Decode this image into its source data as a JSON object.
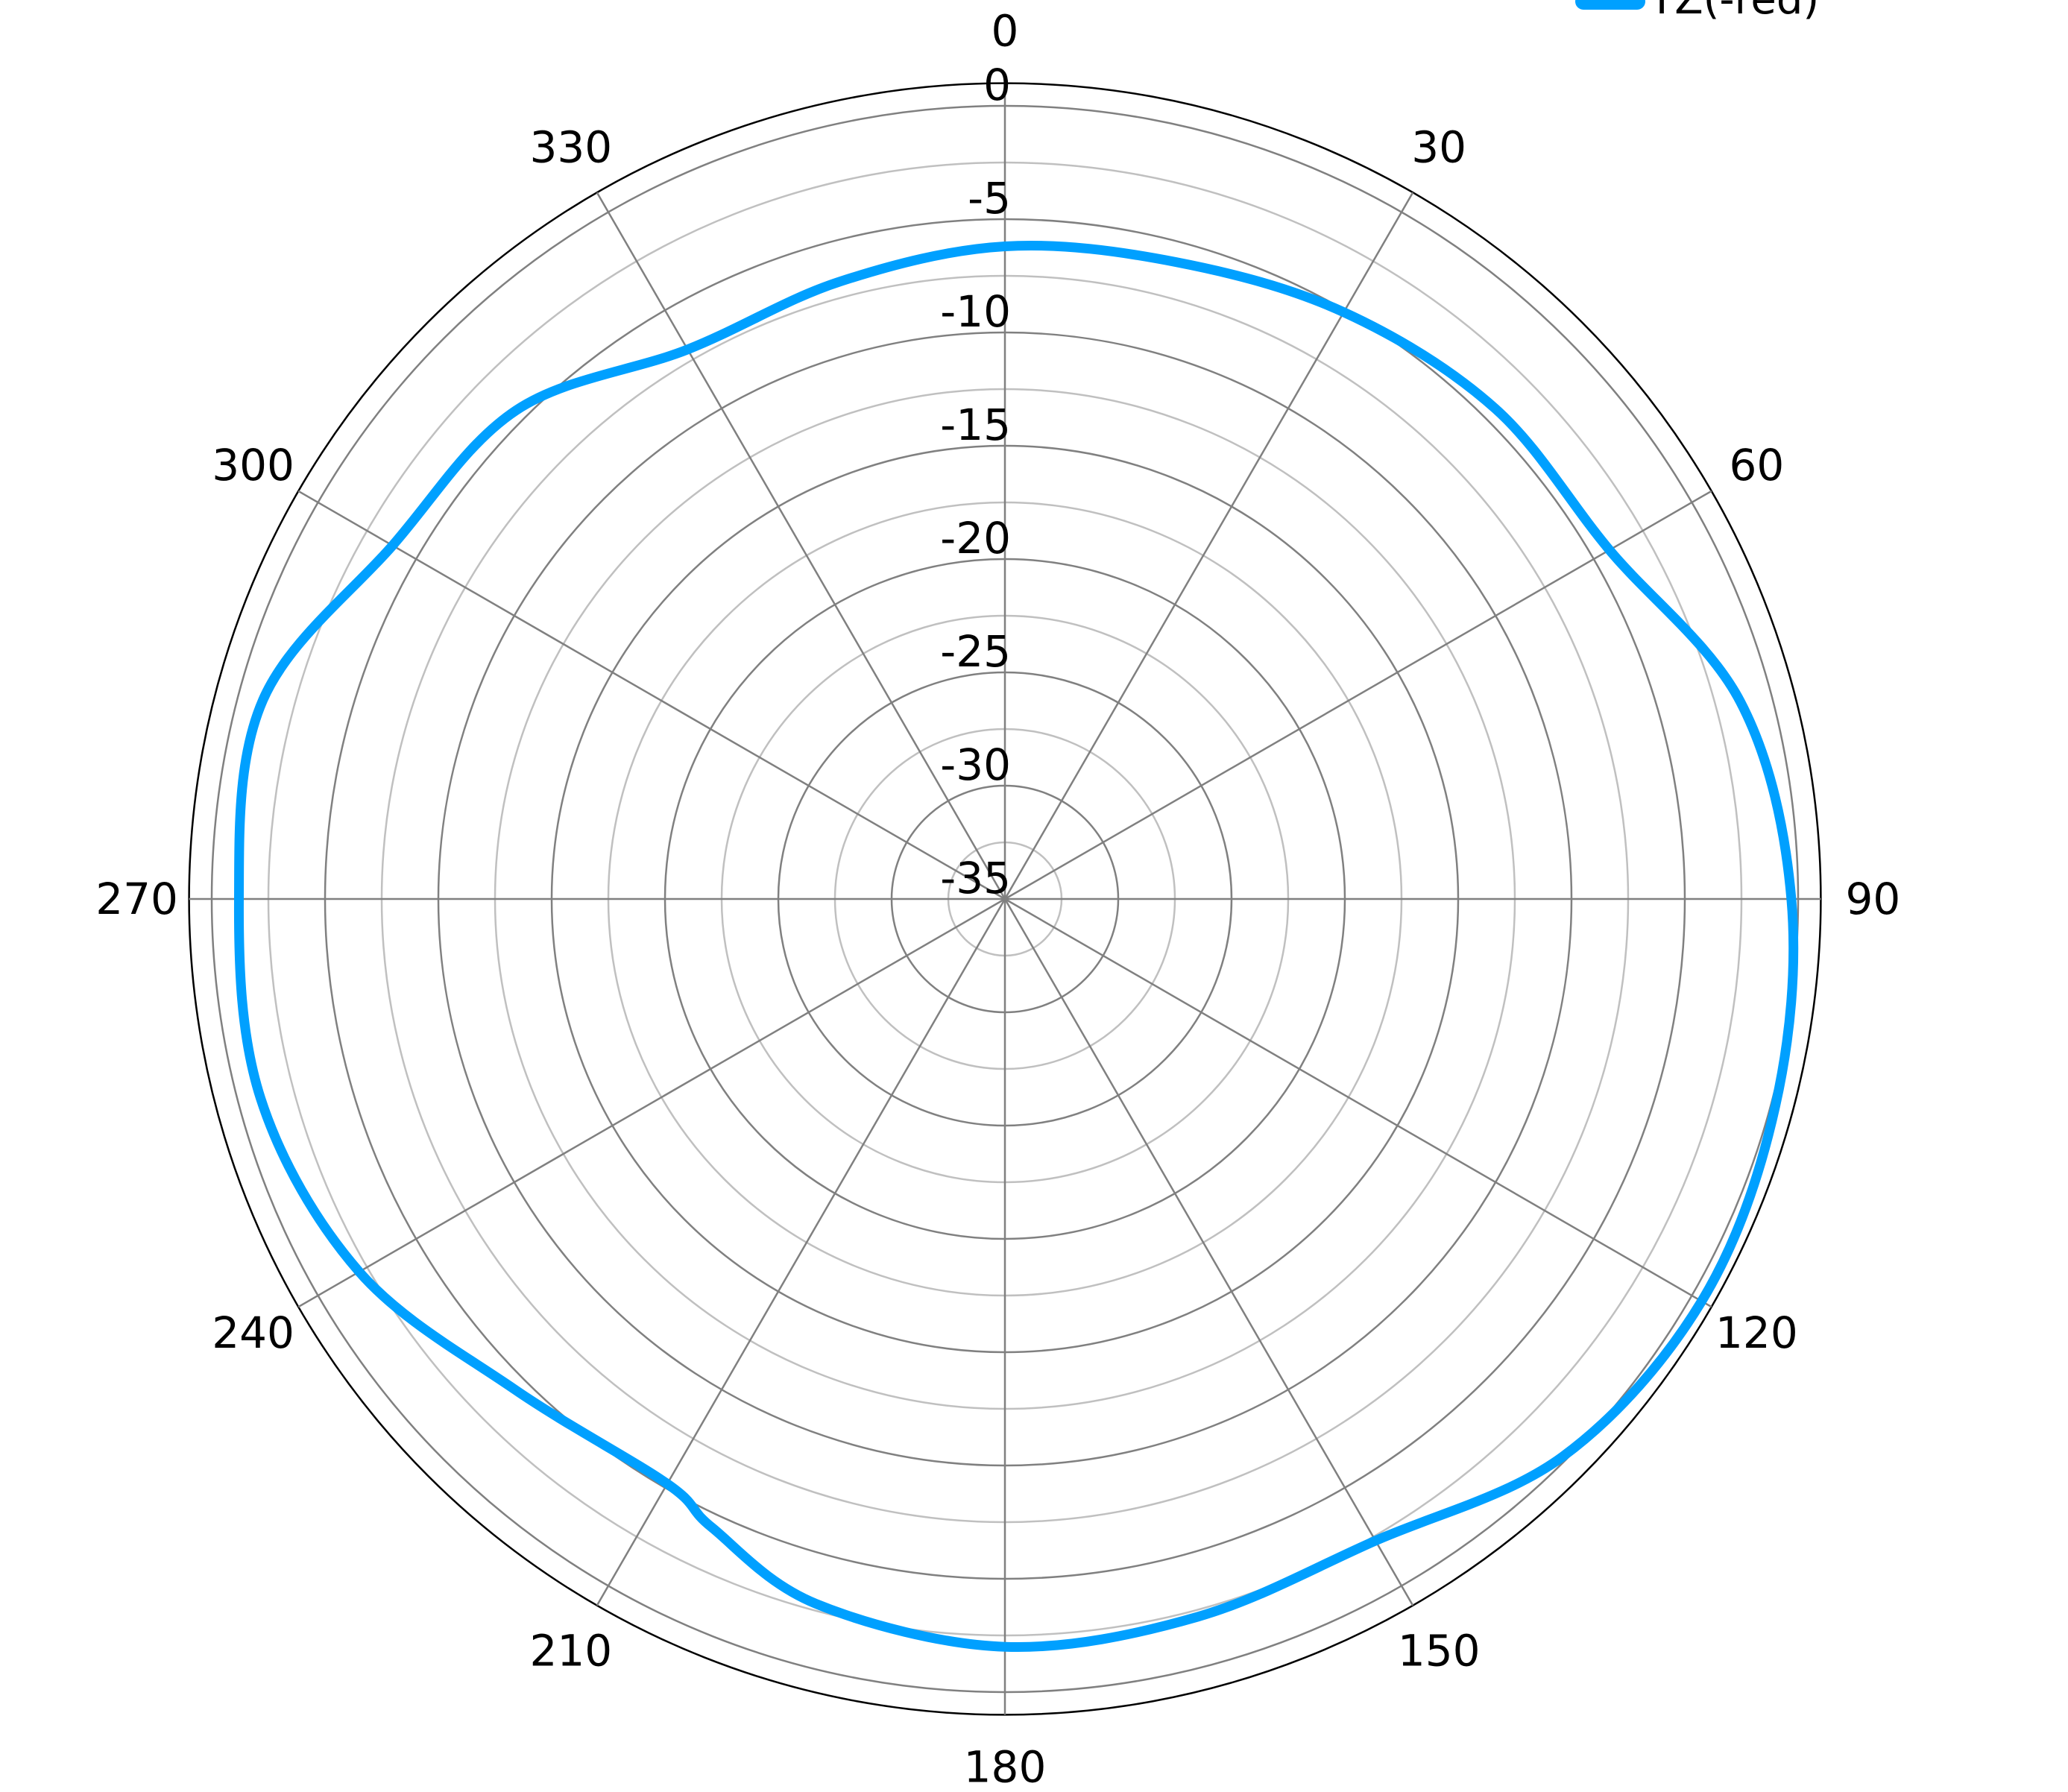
{
  "chart_data": {
    "type": "polar-line",
    "title": "",
    "angle_unit": "degrees",
    "angle_direction": "clockwise",
    "angle_zero": "top",
    "angle_ticks": [
      0,
      30,
      60,
      90,
      120,
      150,
      180,
      210,
      240,
      270,
      300,
      330
    ],
    "angle_tick_labels": [
      "0",
      "30",
      "60",
      "90",
      "120",
      "150",
      "180",
      "210",
      "240",
      "270",
      "300",
      "330"
    ],
    "radial_range": [
      -35,
      1
    ],
    "radial_ticks": [
      0,
      -5,
      -10,
      -15,
      -20,
      -25,
      -30,
      -35
    ],
    "radial_tick_labels": [
      "0",
      "-5",
      "-10",
      "-15",
      "-20",
      "-25",
      "-30",
      "-35"
    ],
    "radial_minor_step": 2.5,
    "grid": true,
    "legend": {
      "placement": "top-right"
    },
    "series": [
      {
        "name": "YZ(-red)",
        "color": "#00A0FF",
        "theta": [
          0,
          15,
          30,
          45,
          60,
          75,
          90,
          105,
          120,
          135,
          150,
          165,
          180,
          195,
          205,
          210,
          225,
          240,
          255,
          270,
          285,
          300,
          315,
          330,
          345
        ],
        "r": [
          -6.2,
          -5.9,
          -5.1,
          -4.4,
          -4.2,
          -1.4,
          -0.3,
          0.2,
          0.5,
          -0.2,
          -2.3,
          -2.2,
          -2.0,
          -2.8,
          -4.4,
          -5.2,
          -4.4,
          -2.1,
          -1.0,
          -1.2,
          -1.1,
          -3.8,
          -4.5,
          -7.0,
          -6.8
        ]
      }
    ]
  }
}
